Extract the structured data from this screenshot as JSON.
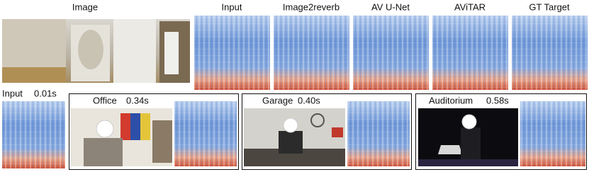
{
  "header": {
    "image_label": "Image",
    "columns": [
      "Input",
      "Image2reverb",
      "AV U-Net",
      "AViTAR",
      "GT Target"
    ]
  },
  "examples": [
    {
      "name": "Input",
      "time": "0.01s"
    },
    {
      "name": "Office",
      "time": "0.34s"
    },
    {
      "name": "Garage",
      "time": "0.40s"
    },
    {
      "name": "Auditorium",
      "time": "0.58s"
    }
  ]
}
